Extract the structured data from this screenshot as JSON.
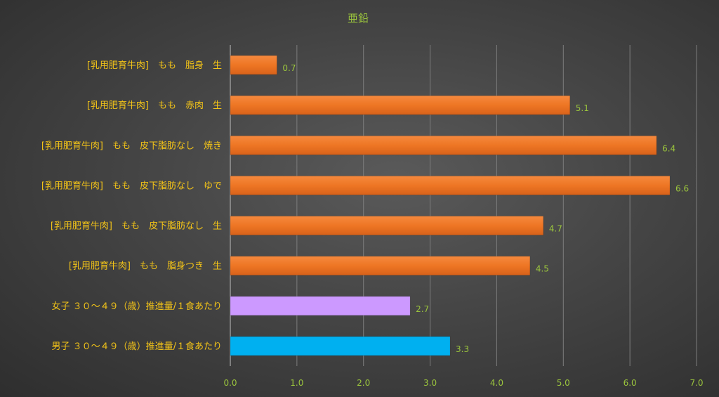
{
  "chart_data": {
    "type": "bar",
    "orientation": "horizontal",
    "title": "亜鉛",
    "xlabel": "",
    "ylabel": "",
    "xlim": [
      0,
      7
    ],
    "ticks": [
      "0.0",
      "1.0",
      "2.0",
      "3.0",
      "4.0",
      "5.0",
      "6.0",
      "7.0"
    ],
    "grid": true,
    "legend": "none",
    "categories": [
      "[乳用肥育牛肉]　もも　脂身　生",
      "[乳用肥育牛肉]　もも　赤肉　生",
      "[乳用肥育牛肉]　もも　皮下脂肪なし　焼き",
      "[乳用肥育牛肉]　もも　皮下脂肪なし　ゆで",
      "[乳用肥育牛肉]　もも　皮下脂肪なし　生",
      "[乳用肥育牛肉]　もも　脂身つき　生",
      "女子 ３０～４９（歳）推進量/１食あたり",
      "男子 ３０～４９（歳）推進量/１食あたり"
    ],
    "values": [
      0.7,
      5.1,
      6.4,
      6.6,
      4.7,
      4.5,
      2.7,
      3.3
    ],
    "value_labels": [
      "0.7",
      "5.1",
      "6.4",
      "6.6",
      "4.7",
      "4.5",
      "2.7",
      "3.3"
    ],
    "colors": [
      "#f07828",
      "#f07828",
      "#f07828",
      "#f07828",
      "#f07828",
      "#f07828",
      "#cc99ff",
      "#00b0f0"
    ]
  }
}
